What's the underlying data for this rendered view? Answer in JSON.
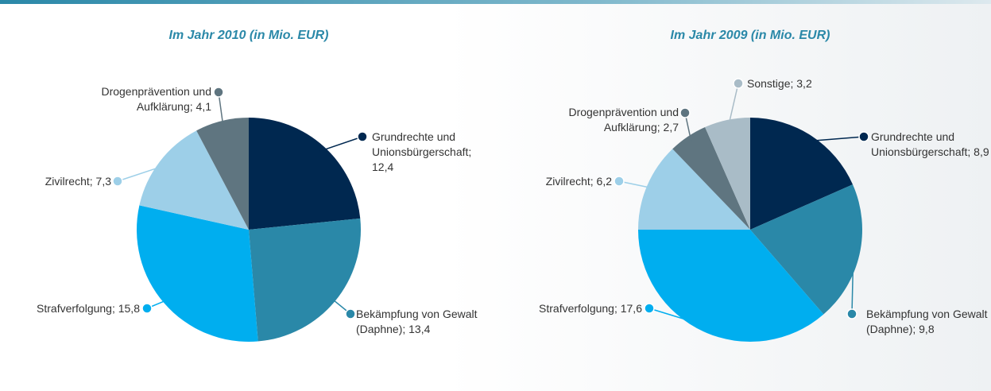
{
  "chart_data": [
    {
      "type": "pie",
      "title": "Im Jahr 2010 (in Mio. EUR)",
      "values": [
        12.4,
        13.4,
        15.8,
        7.3,
        4.1
      ],
      "value_labels": [
        "Grundrechte und Unionsbürgerschaft; 12,4",
        "Bekämpfung von Gewalt (Daphne); 13,4",
        "Strafverfolgung; 15,8",
        "Zivilrecht; 7,3",
        "Drogenprävention und Aufklärung; 4,1"
      ],
      "colors": [
        "#002850",
        "#2a88a8",
        "#00aeef",
        "#9dcfe8",
        "#5f7580"
      ]
    },
    {
      "type": "pie",
      "title": "Im Jahr 2009 (in Mio. EUR)",
      "values": [
        8.9,
        9.8,
        17.6,
        6.2,
        2.7,
        3.2
      ],
      "value_labels": [
        "Grundrechte und Unionsbürgerschaft; 8,9",
        "Bekämpfung von Gewalt (Daphne); 9,8",
        "Strafverfolgung; 17,6",
        "Zivilrecht; 6,2",
        "Drogenprävention und Aufklärung; 2,7",
        "Sonstige; 3,2"
      ],
      "colors": [
        "#002850",
        "#2a88a8",
        "#00aeef",
        "#9dcfe8",
        "#5f7580",
        "#a9bcc7"
      ]
    }
  ]
}
